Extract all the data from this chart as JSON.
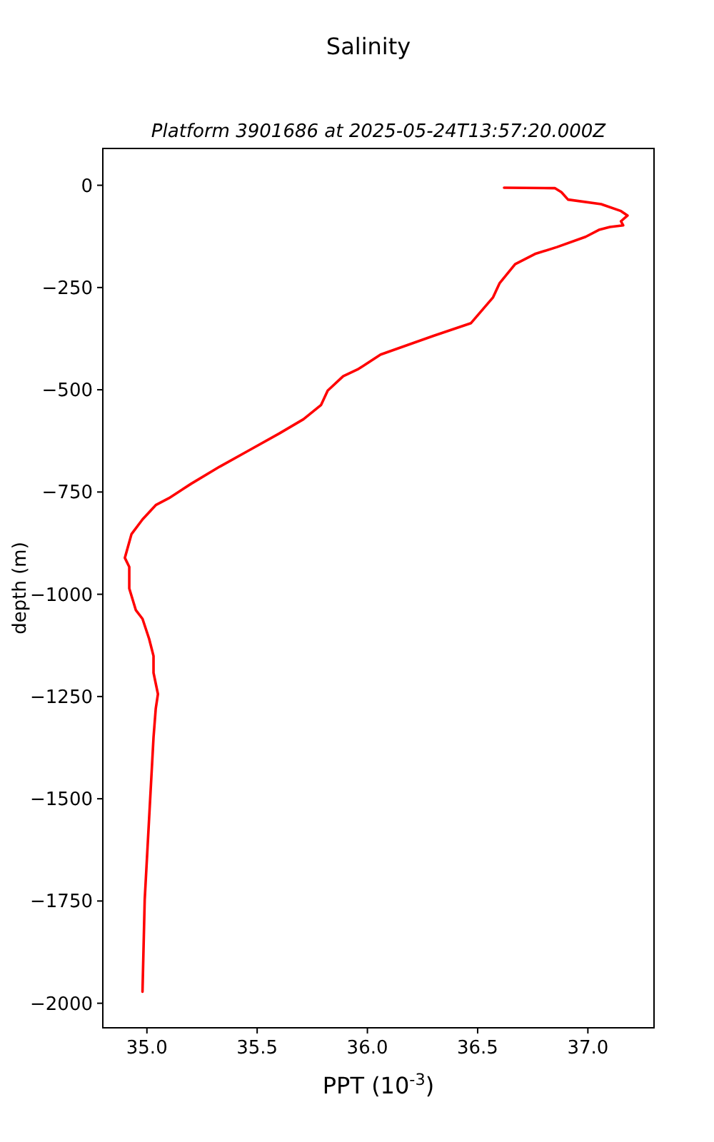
{
  "chart_data": {
    "type": "line",
    "title": "Salinity",
    "subtitle": "Platform 3901686 at 2025-05-24T13:57:20.000Z",
    "xlabel": "PPT (10$^{-3}$)",
    "ylabel": "depth (m)",
    "xlim": [
      34.8,
      37.3
    ],
    "xticks": [
      {
        "value": 35,
        "label": "35.0"
      },
      35.5,
      {
        "value": 36,
        "label": "36.0"
      },
      36.5,
      {
        "value": 37,
        "label": "37.0"
      }
    ],
    "ylim": [
      -2060,
      90
    ],
    "yticks": [
      -2000,
      -1750,
      -1500,
      -1250,
      -1000,
      -750,
      -500,
      -250,
      0
    ],
    "series": [
      {
        "color": "#ff0000",
        "x": [
          36.62,
          36.85,
          36.88,
          36.91,
          37.06,
          37.15,
          37.18,
          37.15,
          37.16,
          37.1,
          37.05,
          36.99,
          36.86,
          36.76,
          36.67,
          36.6,
          36.57,
          36.47,
          36.3,
          36.06,
          35.96,
          35.89,
          35.82,
          35.79,
          35.71,
          35.6,
          35.46,
          35.33,
          35.2,
          35.1,
          35.04,
          34.98,
          34.93,
          34.9,
          34.92,
          34.92,
          34.95,
          34.98,
          35.01,
          35.03,
          35.03,
          35.05,
          35.04,
          35.03,
          35.01,
          34.99,
          34.98
        ],
        "values": [
          -6,
          -7,
          -17,
          -35,
          -46,
          -63,
          -74,
          -88,
          -98,
          -102,
          -109,
          -126,
          -151,
          -168,
          -193,
          -239,
          -274,
          -337,
          -368,
          -414,
          -449,
          -467,
          -502,
          -537,
          -572,
          -607,
          -649,
          -688,
          -730,
          -765,
          -782,
          -817,
          -853,
          -911,
          -933,
          -986,
          -1039,
          -1060,
          -1109,
          -1151,
          -1192,
          -1244,
          -1280,
          -1350,
          -1548,
          -1747,
          -1972
        ]
      }
    ]
  }
}
